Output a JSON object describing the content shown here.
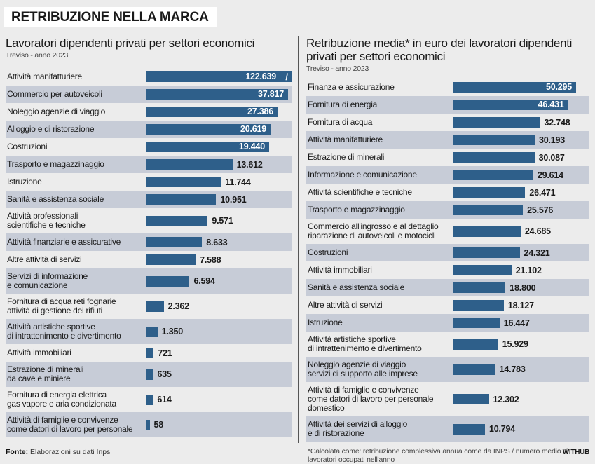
{
  "title": "RETRIBUZIONE NELLA MARCA",
  "source_label": "Fonte:",
  "source_text": " Elaborazioni su dati Inps",
  "logo": "WITHUB",
  "colors": {
    "bar": "#2e5f8a",
    "stripe": "#c7ccd7",
    "background": "#ececec"
  },
  "chart_data": [
    {
      "type": "bar",
      "orientation": "horizontal",
      "title": "Lavoratori dipendenti privati per settori economici",
      "subtitle": "Treviso - anno 2023",
      "broken_axis_on": "Attività manifatturiere",
      "categories": [
        "Attività manifatturiere",
        "Commercio per autoveicoli",
        "Noleggio agenzie di viaggio",
        "Alloggio e di ristorazione",
        "Costruzioni",
        "Trasporto e magazzinaggio",
        "Istruzione",
        "Sanità e assistenza sociale",
        "Attività professionali\nscientifiche e tecniche",
        "Attività finanziarie e assicurative",
        "Altre attività di servizi",
        "Servizi di informazione\ne comunicazione",
        "Fornitura di acqua reti fognarie\nattività di gestione dei rifiuti",
        "Attività artistiche sportive\ndi intrattenimento e divertimento",
        "Attività immobiliari",
        "Estrazione di minerali\nda cave e miniere",
        "Fornitura di energia elettrica\ngas vapore e aria condizionata",
        "Attività di famiglie e convivenze\ncome datori di lavoro per personale"
      ],
      "values": [
        122639,
        37817,
        27386,
        20619,
        19440,
        13612,
        11744,
        10951,
        9571,
        8633,
        7588,
        6594,
        2362,
        1350,
        721,
        635,
        614,
        58
      ],
      "labels": [
        "122.639",
        "37.817",
        "27.386",
        "20.619",
        "19.440",
        "13.612",
        "11.744",
        "10.951",
        "9.571",
        "8.633",
        "7.588",
        "6.594",
        "2.362",
        "1.350",
        "721",
        "635",
        "614",
        "58"
      ]
    },
    {
      "type": "bar",
      "orientation": "horizontal",
      "title": "Retribuzione media* in euro dei lavoratori dipendenti privati per settori economici",
      "subtitle": "Treviso - anno 2023",
      "footnote": "*Calcolata come: retribuzione complessiva annua come da INPS / numero medio di lavoratori occupati nell'anno",
      "categories": [
        "Finanza e assicurazione",
        "Fornitura di energia",
        "Fornitura di acqua",
        "Attività manifatturiere",
        "Estrazione di minerali",
        "Informazione e comunicazione",
        "Attività scientifiche e tecniche",
        "Trasporto e magazzinaggio",
        "Commercio all'ingrosso e al dettaglio\nriparazione di autoveicoli e motocicli",
        "Costruzioni",
        "Attività immobiliari",
        "Sanità e assistenza sociale",
        "Altre attività di servizi",
        "Istruzione",
        "Attività artistiche sportive\ndi intrattenimento e divertimento",
        "Noleggio agenzie di viaggio\nservizi di supporto alle imprese",
        "Attività di famiglie e convivenze\ncome datori di lavoro per personale\ndomestico",
        "Attività dei servizi di alloggio\ne di ristorazione"
      ],
      "values": [
        50295,
        46431,
        32748,
        30193,
        30087,
        29614,
        26471,
        25576,
        24685,
        24321,
        21102,
        18800,
        18127,
        16447,
        15929,
        14783,
        12302,
        10794
      ],
      "labels": [
        "50.295",
        "46.431",
        "32.748",
        "30.193",
        "30.087",
        "29.614",
        "26.471",
        "25.576",
        "24.685",
        "24.321",
        "21.102",
        "18.800",
        "18.127",
        "16.447",
        "15.929",
        "14.783",
        "12.302",
        "10.794"
      ]
    }
  ]
}
